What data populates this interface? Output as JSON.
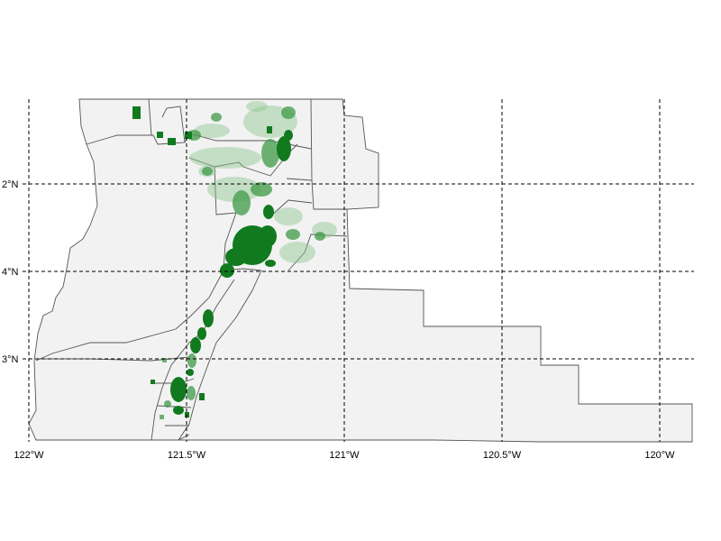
{
  "map": {
    "lon_ticks": [
      "122°W",
      "121.5°W",
      "121°W",
      "120.5°W",
      "120°W"
    ],
    "lat_ticks": [
      "2°N",
      "4°N",
      "3°N"
    ],
    "colors": {
      "background": "#ffffff",
      "land": "#f2f2f2",
      "border": "#555555",
      "development": "#117a1e",
      "development_light": "#8cc58f",
      "grid": "#000000"
    },
    "gridlines": "dashed",
    "icons": []
  }
}
